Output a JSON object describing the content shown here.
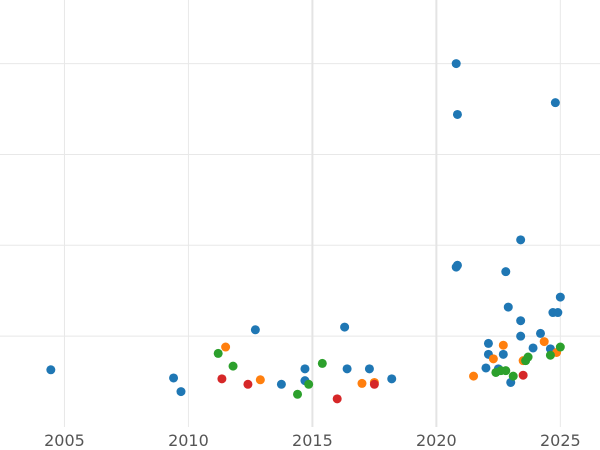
{
  "chart_data": {
    "type": "scatter",
    "title": "",
    "xlabel": "",
    "ylabel": "",
    "xlim": [
      2002.4,
      2026.6
    ],
    "ylim": [
      0,
      4.7
    ],
    "grid": true,
    "x_ticks": [
      {
        "value": 2005,
        "label": "2005"
      },
      {
        "value": 2010,
        "label": "2010"
      },
      {
        "value": 2015,
        "label": "2015"
      },
      {
        "value": 2020,
        "label": "2020"
      },
      {
        "value": 2025,
        "label": "2025"
      }
    ],
    "y_grid": [
      1.0,
      2.0,
      3.0,
      4.0
    ],
    "colors": [
      "#1f77b4",
      "#ff7f0e",
      "#2ca02c",
      "#d62728"
    ],
    "series": [
      {
        "color": "#1f77b4",
        "points": [
          [
            2004.45,
            0.63
          ],
          [
            2009.4,
            0.54
          ],
          [
            2009.7,
            0.39
          ],
          [
            2012.7,
            1.07
          ],
          [
            2013.75,
            0.47
          ],
          [
            2014.7,
            0.64
          ],
          [
            2014.7,
            0.51
          ],
          [
            2016.3,
            1.1
          ],
          [
            2016.4,
            0.64
          ],
          [
            2017.3,
            0.64
          ],
          [
            2018.2,
            0.53
          ],
          [
            2020.8,
            4.0
          ],
          [
            2020.85,
            3.44
          ],
          [
            2020.8,
            1.76
          ],
          [
            2020.85,
            1.78
          ],
          [
            2022.0,
            0.65
          ],
          [
            2022.1,
            0.92
          ],
          [
            2022.1,
            0.8
          ],
          [
            2022.5,
            0.64
          ],
          [
            2022.7,
            0.8
          ],
          [
            2022.8,
            1.71
          ],
          [
            2022.9,
            1.32
          ],
          [
            2023.0,
            0.49
          ],
          [
            2023.4,
            1.17
          ],
          [
            2023.4,
            1.0
          ],
          [
            2023.4,
            2.06
          ],
          [
            2023.9,
            0.87
          ],
          [
            2024.2,
            1.03
          ],
          [
            2024.6,
            0.86
          ],
          [
            2024.7,
            1.26
          ],
          [
            2024.8,
            3.57
          ],
          [
            2024.9,
            1.26
          ],
          [
            2025.0,
            1.43
          ]
        ]
      },
      {
        "color": "#ff7f0e",
        "points": [
          [
            2011.5,
            0.88
          ],
          [
            2012.9,
            0.52
          ],
          [
            2017.0,
            0.48
          ],
          [
            2017.5,
            0.49
          ],
          [
            2021.5,
            0.56
          ],
          [
            2022.3,
            0.75
          ],
          [
            2022.7,
            0.9
          ],
          [
            2023.5,
            0.73
          ],
          [
            2024.35,
            0.94
          ],
          [
            2024.85,
            0.82
          ]
        ]
      },
      {
        "color": "#2ca02c",
        "points": [
          [
            2011.2,
            0.81
          ],
          [
            2011.8,
            0.67
          ],
          [
            2014.4,
            0.36
          ],
          [
            2014.85,
            0.47
          ],
          [
            2015.4,
            0.7
          ],
          [
            2022.4,
            0.6
          ],
          [
            2022.6,
            0.62
          ],
          [
            2022.8,
            0.62
          ],
          [
            2023.1,
            0.56
          ],
          [
            2023.6,
            0.73
          ],
          [
            2023.7,
            0.77
          ],
          [
            2024.6,
            0.79
          ],
          [
            2025.0,
            0.88
          ]
        ]
      },
      {
        "color": "#d62728",
        "points": [
          [
            2011.35,
            0.53
          ],
          [
            2012.4,
            0.47
          ],
          [
            2016.0,
            0.31
          ],
          [
            2017.5,
            0.47
          ],
          [
            2023.5,
            0.57
          ]
        ]
      }
    ]
  }
}
